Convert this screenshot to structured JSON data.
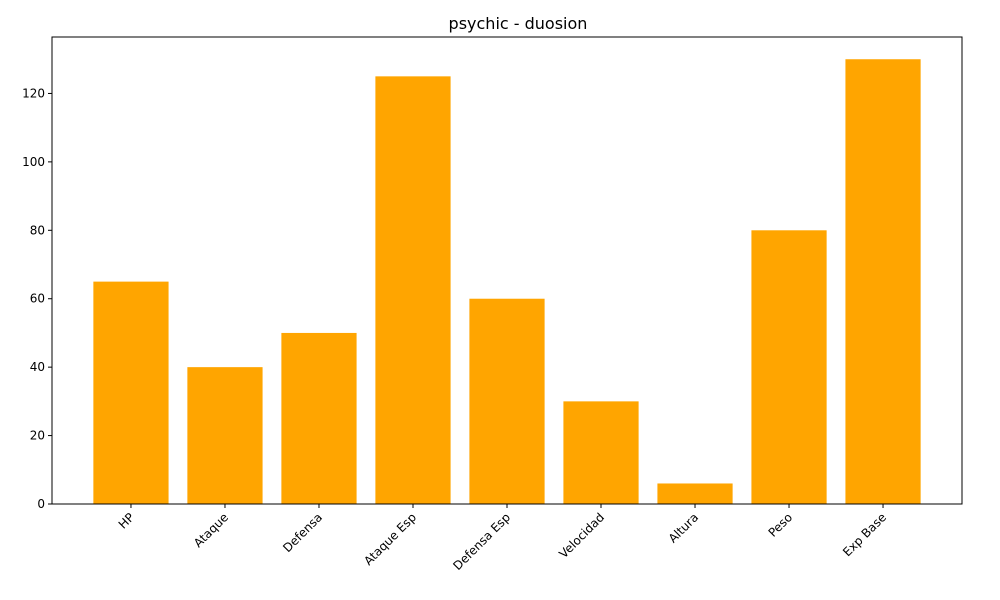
{
  "chart_data": {
    "type": "bar",
    "title": "psychic - duosion",
    "xlabel": "",
    "ylabel": "",
    "categories": [
      "HP",
      "Ataque",
      "Defensa",
      "Ataque Esp",
      "Defensa Esp",
      "Velocidad",
      "Altura",
      "Peso",
      "Exp Base"
    ],
    "values": [
      65,
      40,
      50,
      125,
      60,
      30,
      6,
      80,
      130
    ],
    "ylim": [
      0,
      136.5
    ],
    "yticks": [
      0,
      20,
      40,
      60,
      80,
      100,
      120
    ],
    "bar_color": "#ffa500",
    "grid": false,
    "legend": "none"
  }
}
